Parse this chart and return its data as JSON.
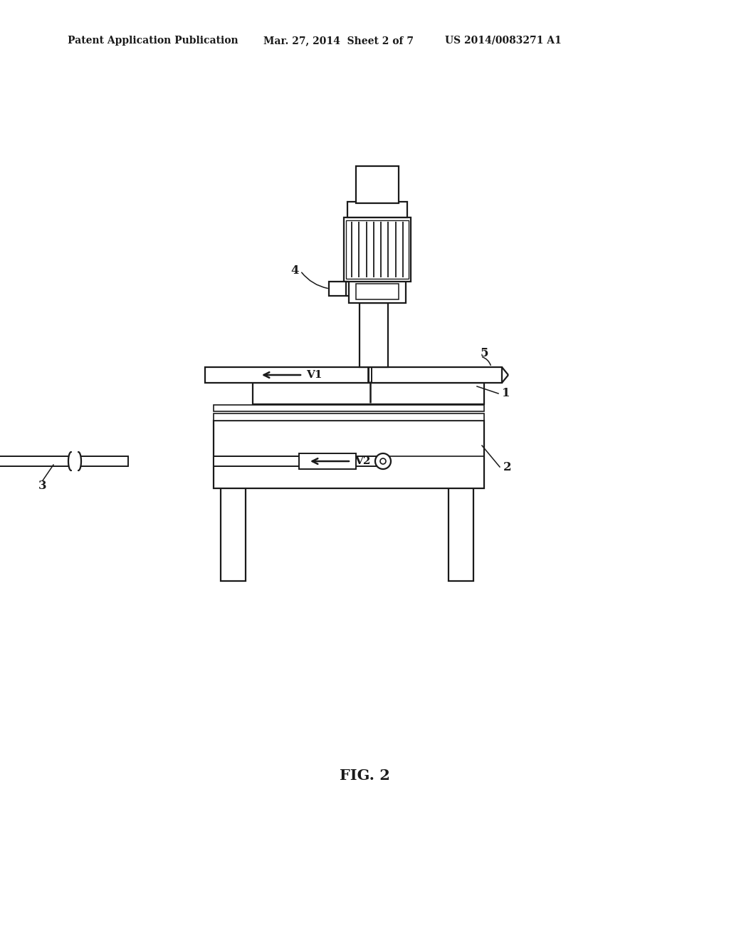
{
  "bg_color": "#ffffff",
  "line_color": "#1a1a1a",
  "header_left": "Patent Application Publication",
  "header_mid": "Mar. 27, 2014  Sheet 2 of 7",
  "header_right": "US 2014/0083271 A1",
  "fig_label": "FIG. 2",
  "label_1": "1",
  "label_2": "2",
  "label_3": "3",
  "label_4": "4",
  "label_5": "5",
  "arrow_v1": "V1",
  "arrow_v2": "V2",
  "n_motor_fins": 8
}
